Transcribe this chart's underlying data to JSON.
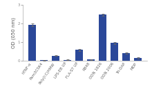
{
  "categories": [
    "hTNF-α",
    "Pam3CSK4",
    "Poly(I:C)HMW",
    "LPS-EB UP",
    "FLA-ST UP",
    "R848",
    "ODN 1826",
    "ODN 2006",
    "Tri-DAP",
    "MDP"
  ],
  "values": [
    1.93,
    0.03,
    0.27,
    0.05,
    0.58,
    0.06,
    2.48,
    0.95,
    0.4,
    0.15
  ],
  "errors": [
    0.07,
    0.01,
    0.025,
    0.01,
    0.065,
    0.015,
    0.055,
    0.07,
    0.04,
    0.025
  ],
  "bar_color": "#2b4899",
  "ylabel": "OD (δ50 nm)",
  "ylim": [
    0,
    3
  ],
  "yticks": [
    0,
    1,
    2,
    3
  ],
  "background_color": "#ffffff",
  "tick_label_fontsize": 4.0,
  "ylabel_fontsize": 5.0,
  "bar_width": 0.65
}
